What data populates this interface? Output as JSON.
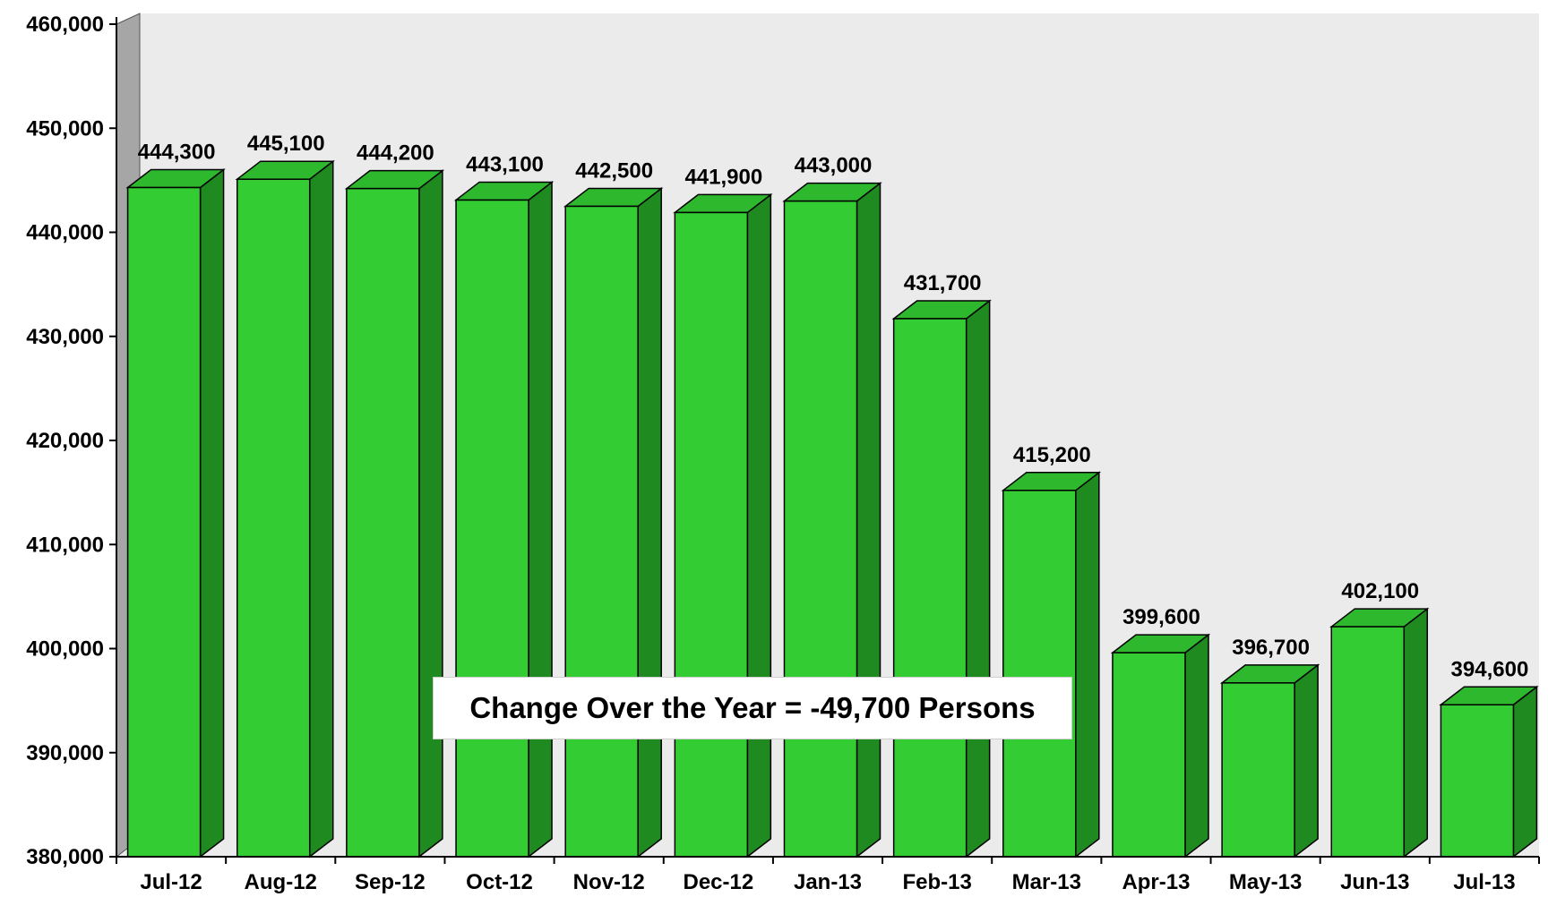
{
  "chart_data": {
    "type": "bar",
    "categories": [
      "Jul-12",
      "Aug-12",
      "Sep-12",
      "Oct-12",
      "Nov-12",
      "Dec-12",
      "Jan-13",
      "Feb-13",
      "Mar-13",
      "Apr-13",
      "May-13",
      "Jun-13",
      "Jul-13"
    ],
    "values": [
      444300,
      445100,
      444200,
      443100,
      442500,
      441900,
      443000,
      431700,
      415200,
      399600,
      396700,
      402100,
      394600
    ],
    "data_labels": [
      "444,300",
      "445,100",
      "444,200",
      "443,100",
      "442,500",
      "441,900",
      "443,000",
      "431,700",
      "415,200",
      "399,600",
      "396,700",
      "402,100",
      "394,600"
    ],
    "y_ticks": [
      380000,
      390000,
      400000,
      410000,
      420000,
      430000,
      440000,
      450000,
      460000
    ],
    "y_tick_labels": [
      "380,000",
      "390,000",
      "400,000",
      "410,000",
      "420,000",
      "430,000",
      "440,000",
      "450,000",
      "460,000"
    ],
    "ylim": [
      380000,
      460000
    ],
    "grid": false,
    "style": "3d-bar",
    "annotation": "Change Over the Year = -49,700 Persons",
    "colors": {
      "bar_front": "#33CC33",
      "bar_top": "#2EB82E",
      "bar_side": "#1F8A1F",
      "bar_outline": "#000000",
      "plot_background": "#EBEBEB",
      "left_wall": "#A6A6A6",
      "axis": "#000000"
    }
  }
}
